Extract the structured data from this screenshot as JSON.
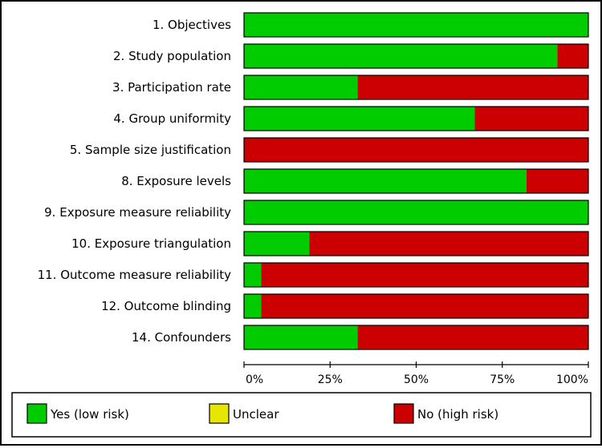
{
  "chart_data": {
    "type": "bar",
    "orientation": "horizontal",
    "stacked": true,
    "normalized_percent": true,
    "categories": [
      "1. Objectives",
      "2. Study population",
      "3. Participation rate",
      "4. Group uniformity",
      "5. Sample size justification",
      "8. Exposure levels",
      "9. Exposure measure reliability",
      "10. Exposure triangulation",
      "11. Outcome measure reliability",
      "12. Outcome blinding",
      "14. Confounders"
    ],
    "series": [
      {
        "name": "Yes (low risk)",
        "color": "#00cc00",
        "values": [
          100,
          91,
          33,
          67,
          0,
          82,
          100,
          19,
          5,
          5,
          33
        ]
      },
      {
        "name": "Unclear",
        "color": "#e6e600",
        "values": [
          0,
          0,
          0,
          0,
          0,
          0,
          0,
          0,
          0,
          0,
          0
        ]
      },
      {
        "name": "No (high risk)",
        "color": "#cc0000",
        "values": [
          0,
          9,
          67,
          33,
          100,
          18,
          0,
          81,
          95,
          95,
          67
        ]
      }
    ],
    "xlim": [
      0,
      100
    ],
    "xticks": [
      0,
      25,
      50,
      75,
      100
    ],
    "xtick_labels": [
      "0%",
      "25%",
      "50%",
      "75%",
      "100%"
    ],
    "legend_position": "bottom",
    "grid": false
  }
}
